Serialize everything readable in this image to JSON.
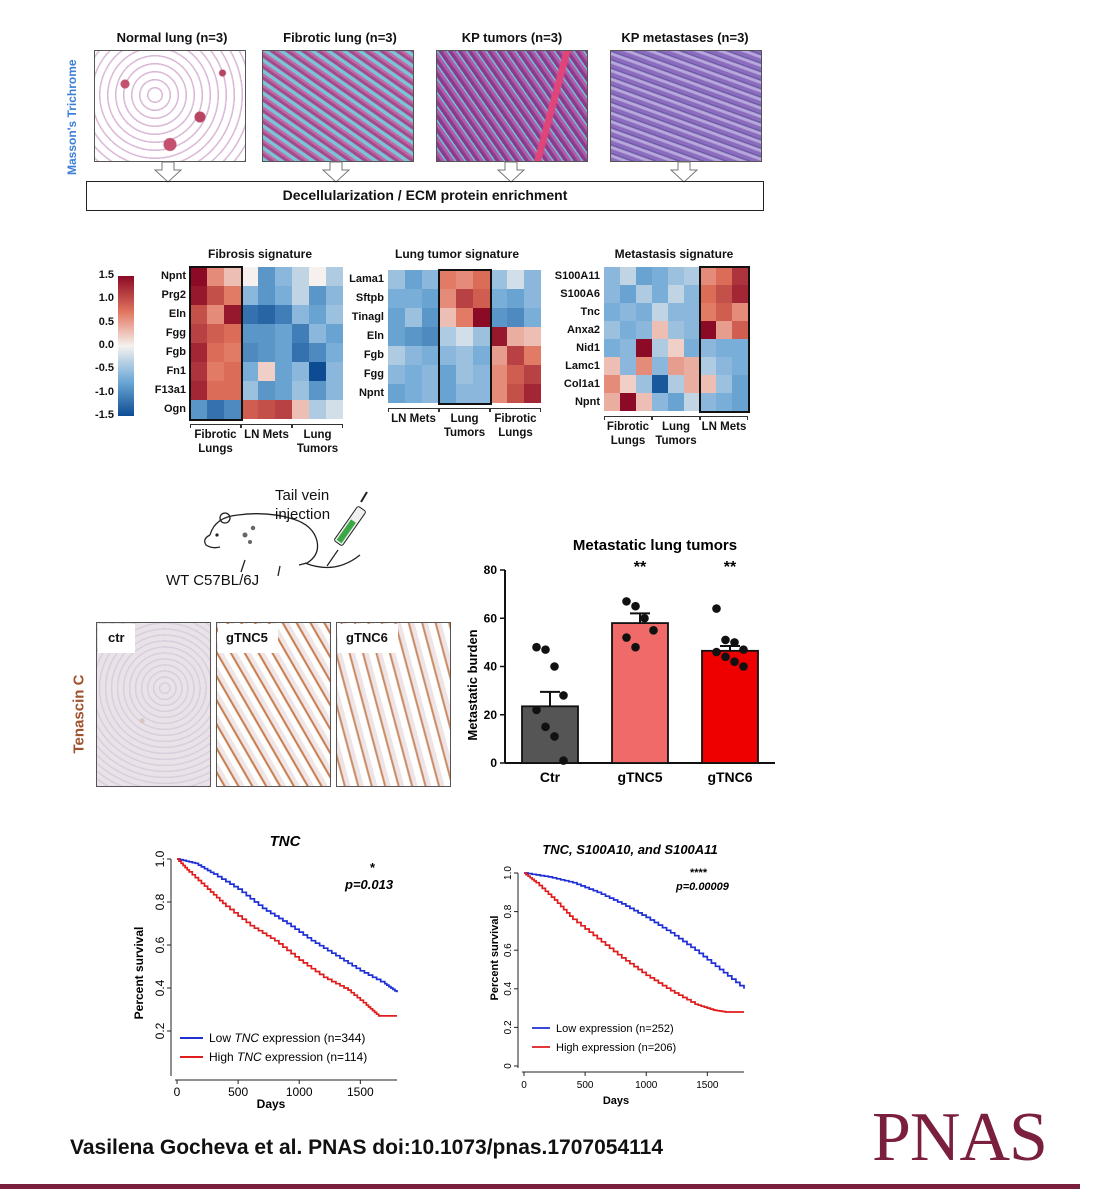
{
  "histology": {
    "titles": [
      "Normal lung (n=3)",
      "Fibrotic lung (n=3)",
      "KP tumors (n=3)",
      "KP metastases (n=3)"
    ],
    "side_label": "Masson's Trichrome",
    "side_label_color": "#3d7fd6",
    "process_box": "Decellularization / ECM protein enrichment"
  },
  "heatmaps": {
    "scale_ticks": [
      "1.5",
      "1.0",
      "0.5",
      "0.0",
      "-0.5",
      "-1.0",
      "-1.5"
    ],
    "panels": [
      {
        "title": "Fibrosis signature",
        "genes": [
          "Npnt",
          "Prg2",
          "Eln",
          "Fgg",
          "Fgb",
          "Fn1",
          "F13a1",
          "Ogn"
        ],
        "groups": [
          {
            "line1": "Fibrotic",
            "line2": "Lungs"
          },
          {
            "line1": "LN Mets",
            "line2": ""
          },
          {
            "line1": "Lung",
            "line2": "Tumors"
          }
        ],
        "values": [
          [
            1.5,
            0.6,
            0.3,
            0.0,
            -0.9,
            -0.6,
            -0.3,
            0.0,
            -0.4
          ],
          [
            1.4,
            1.0,
            0.7,
            -0.6,
            -0.9,
            -0.7,
            -0.3,
            -0.9,
            -0.6
          ],
          [
            1.0,
            0.6,
            1.4,
            -1.2,
            -1.3,
            -1.1,
            -0.6,
            -0.8,
            -0.5
          ],
          [
            1.1,
            0.9,
            0.8,
            -0.9,
            -0.9,
            -0.8,
            -1.1,
            -0.6,
            -0.8
          ],
          [
            1.3,
            0.8,
            0.7,
            -1.0,
            -0.9,
            -0.8,
            -1.2,
            -1.0,
            -0.7
          ],
          [
            1.2,
            0.7,
            0.8,
            -0.7,
            0.2,
            -0.8,
            -0.6,
            -1.5,
            -0.6
          ],
          [
            1.3,
            0.8,
            0.8,
            -0.5,
            -0.9,
            -0.8,
            -0.5,
            -0.9,
            -0.6
          ],
          [
            -0.9,
            -1.2,
            -1.0,
            0.9,
            1.0,
            1.1,
            0.3,
            -0.4,
            -0.2
          ]
        ],
        "box": [
          0,
          3
        ]
      },
      {
        "title": "Lung tumor signature",
        "genes": [
          "Lama1",
          "Sftpb",
          "Tinagl",
          "Eln",
          "Fgb",
          "Fgg",
          "Npnt"
        ],
        "groups": [
          {
            "line1": "LN Mets",
            "line2": ""
          },
          {
            "line1": "Lung",
            "line2": "Tumors"
          },
          {
            "line1": "Fibrotic",
            "line2": "Lungs"
          }
        ],
        "values": [
          [
            -0.5,
            -0.8,
            -0.6,
            0.7,
            0.6,
            0.8,
            -0.5,
            -0.2,
            -0.6
          ],
          [
            -0.7,
            -0.7,
            -0.8,
            0.6,
            1.1,
            0.9,
            -0.7,
            -0.8,
            -0.6
          ],
          [
            -0.8,
            -0.5,
            -0.9,
            0.3,
            0.7,
            1.5,
            -0.9,
            -1.0,
            -0.7
          ],
          [
            -0.8,
            -0.9,
            -1.0,
            -0.4,
            -0.2,
            -0.5,
            1.4,
            0.4,
            0.3
          ],
          [
            -0.4,
            -0.6,
            -0.7,
            -0.6,
            -0.5,
            -0.7,
            0.5,
            1.1,
            0.7
          ],
          [
            -0.6,
            -0.7,
            -0.6,
            -0.8,
            -0.5,
            -0.6,
            0.6,
            0.9,
            1.1
          ],
          [
            -0.8,
            -0.7,
            -0.6,
            -0.8,
            -0.6,
            -0.6,
            0.6,
            1.0,
            1.3
          ]
        ],
        "box": [
          3,
          6
        ]
      },
      {
        "title": "Metastasis signature",
        "genes": [
          "S100A11",
          "S100A6",
          "Tnc",
          "Anxa2",
          "Nid1",
          "Lamc1",
          "Col1a1",
          "Npnt"
        ],
        "groups": [
          {
            "line1": "Fibrotic",
            "line2": "Lungs"
          },
          {
            "line1": "Lung",
            "line2": "Tumors"
          },
          {
            "line1": "LN Mets",
            "line2": ""
          }
        ],
        "values": [
          [
            -0.6,
            -0.3,
            -0.8,
            -0.7,
            -0.5,
            -0.4,
            0.6,
            0.8,
            1.2
          ],
          [
            -0.6,
            -0.8,
            -0.4,
            -0.7,
            -0.3,
            -0.6,
            0.8,
            1.0,
            1.3
          ],
          [
            -0.7,
            -0.6,
            -0.7,
            -0.3,
            -0.6,
            -0.6,
            0.7,
            0.9,
            0.6
          ],
          [
            -0.5,
            -0.7,
            -0.6,
            0.3,
            -0.5,
            -0.6,
            1.5,
            0.5,
            0.9
          ],
          [
            -0.7,
            -0.6,
            1.5,
            -0.4,
            0.2,
            -0.7,
            -0.6,
            -0.7,
            -0.7
          ],
          [
            0.3,
            -0.6,
            0.6,
            -0.6,
            0.5,
            0.4,
            -0.4,
            -0.6,
            -0.7
          ],
          [
            0.6,
            0.2,
            -0.5,
            -1.4,
            -0.4,
            0.4,
            0.3,
            -0.5,
            -0.8
          ],
          [
            0.4,
            1.5,
            0.3,
            -0.6,
            -0.8,
            -0.3,
            -0.6,
            -0.7,
            -0.8
          ]
        ],
        "box": [
          6,
          9
        ]
      }
    ]
  },
  "mouse": {
    "injection_label_1": "Tail vein",
    "injection_label_2": "injection",
    "strain_label": "WT C57BL/6J"
  },
  "ihc": {
    "side_label": "Tenascin C",
    "side_label_color": "#a0522d",
    "panels": [
      "ctr",
      "gTNC5",
      "gTNC6"
    ]
  },
  "chart_data": [
    {
      "type": "bar",
      "title": "Metastatic lung tumors",
      "ylabel": "Metastatic burden",
      "ylim": [
        0,
        80
      ],
      "yticks": [
        0,
        20,
        40,
        60,
        80
      ],
      "categories": [
        "Ctr",
        "gTNC5",
        "gTNC6"
      ],
      "values": [
        23.5,
        58,
        46.5
      ],
      "sem": [
        6,
        4,
        2
      ],
      "colors": [
        "#555555",
        "#f06a6a",
        "#ee0000"
      ],
      "significance": [
        "",
        "**",
        "**"
      ],
      "points": [
        [
          48,
          47,
          40,
          28,
          22,
          15,
          11,
          1
        ],
        [
          67,
          65,
          60,
          55,
          52,
          48
        ],
        [
          64,
          51,
          50,
          47,
          46,
          44,
          42,
          40
        ]
      ]
    },
    {
      "type": "line",
      "title": "TNC",
      "xlabel": "Days",
      "ylabel": "Percent survival",
      "xlim": [
        0,
        1800
      ],
      "ylim": [
        0,
        1.0
      ],
      "xticks": [
        0,
        500,
        1000,
        1500
      ],
      "yticks": [
        0.2,
        0.4,
        0.6,
        0.8,
        1.0
      ],
      "significance": "*",
      "pvalue": "p=0.013",
      "legend_parts": [
        {
          "pre": "Low ",
          "em": "TNC",
          "post": " expression (n=344)",
          "color": "#1f2fd6"
        },
        {
          "pre": "High ",
          "em": "TNC",
          "post": " expression (n=114)",
          "color": "#e01c1c"
        }
      ],
      "series": [
        {
          "color": "#1f2fd6",
          "x": [
            0,
            150,
            300,
            500,
            700,
            900,
            1100,
            1300,
            1500,
            1700,
            1800
          ],
          "y": [
            1.0,
            0.98,
            0.93,
            0.86,
            0.77,
            0.7,
            0.62,
            0.55,
            0.48,
            0.42,
            0.38
          ]
        },
        {
          "color": "#e01c1c",
          "x": [
            0,
            100,
            250,
            400,
            600,
            800,
            1000,
            1200,
            1400,
            1550,
            1650,
            1800
          ],
          "y": [
            1.0,
            0.94,
            0.86,
            0.78,
            0.69,
            0.62,
            0.53,
            0.45,
            0.39,
            0.32,
            0.27,
            0.27
          ]
        }
      ]
    },
    {
      "type": "line",
      "title": "TNC, S100A10, and S100A11",
      "xlabel": "Days",
      "ylabel": "Percent survival",
      "xlim": [
        0,
        1800
      ],
      "ylim": [
        0,
        1.0
      ],
      "xticks": [
        0,
        500,
        1000,
        1500
      ],
      "yticks": [
        0,
        0.2,
        0.4,
        0.6,
        0.8,
        1.0
      ],
      "significance": "****",
      "pvalue": "p=0.00009",
      "legend": [
        "Low expression (n=252)",
        "High expression (n=206)"
      ],
      "series": [
        {
          "color": "#1f2fd6",
          "x": [
            0,
            200,
            400,
            600,
            800,
            1000,
            1200,
            1400,
            1600,
            1800
          ],
          "y": [
            1.0,
            0.98,
            0.95,
            0.9,
            0.84,
            0.77,
            0.69,
            0.6,
            0.5,
            0.4
          ]
        },
        {
          "color": "#e01c1c",
          "x": [
            0,
            100,
            250,
            400,
            600,
            800,
            1000,
            1200,
            1400,
            1550,
            1650,
            1800
          ],
          "y": [
            1.0,
            0.95,
            0.86,
            0.76,
            0.66,
            0.56,
            0.47,
            0.39,
            0.32,
            0.29,
            0.28,
            0.28
          ]
        }
      ]
    }
  ],
  "footer": {
    "citation": "Vasilena Gocheva et al. PNAS doi:10.1073/pnas.1707054114",
    "logo": "PNAS",
    "logo_color": "#7a1f3d"
  }
}
